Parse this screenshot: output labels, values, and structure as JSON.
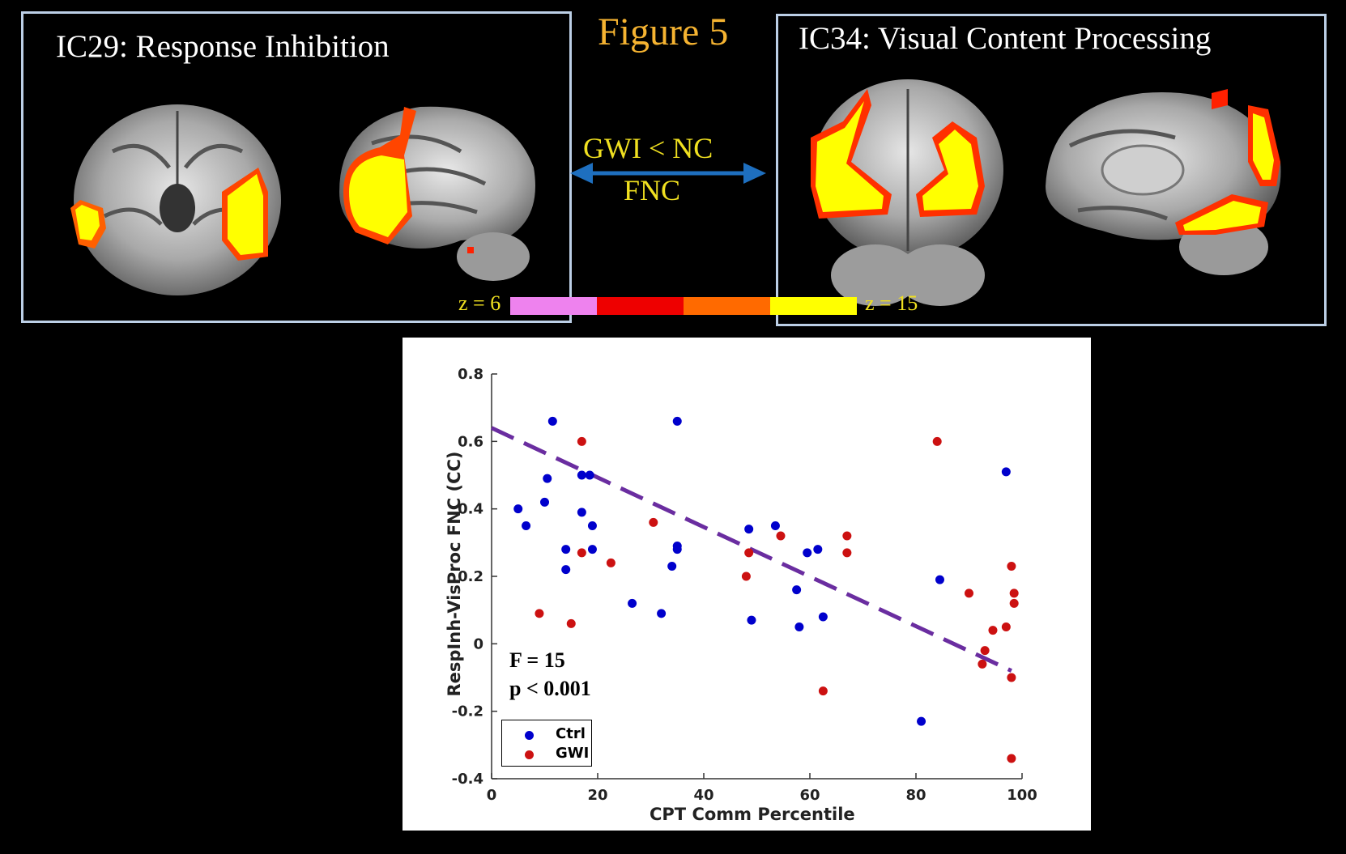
{
  "figure_title": "Figure 5",
  "left_panel": {
    "title": "IC29: Response Inhibition"
  },
  "right_panel": {
    "title": "IC34: Visual Content Processing"
  },
  "comparison": {
    "label": "GWI < NC",
    "measure": "FNC"
  },
  "colorbar": {
    "min_label": "z = 6",
    "max_label": "z = 15",
    "colors": [
      "#ee82ee",
      "#ee0000",
      "#ff6a00",
      "#ffff00"
    ]
  },
  "stats": {
    "f": "F = 15",
    "p": "p < 0.001"
  },
  "legend": [
    {
      "label": "Ctrl",
      "color": "#0000cc"
    },
    {
      "label": "GWI",
      "color": "#cc1111"
    }
  ],
  "chart_data": {
    "type": "scatter",
    "xlabel": "CPT Comm Percentile",
    "ylabel": "RespInh-VisProc FNC (CC)",
    "xlim": [
      0,
      100
    ],
    "ylim": [
      -0.4,
      0.8
    ],
    "x_ticks": [
      "0",
      "20",
      "40",
      "60",
      "80",
      "100"
    ],
    "y_ticks": [
      "-0.4",
      "-0.2",
      "0",
      "0.2",
      "0.4",
      "0.6",
      "0.8"
    ],
    "series": [
      {
        "name": "Ctrl",
        "color": "#0000cc",
        "points": [
          [
            5,
            0.4
          ],
          [
            6.5,
            0.35
          ],
          [
            10,
            0.42
          ],
          [
            10.5,
            0.49
          ],
          [
            11.5,
            0.66
          ],
          [
            14,
            0.28
          ],
          [
            14,
            0.22
          ],
          [
            17,
            0.39
          ],
          [
            17,
            0.5
          ],
          [
            18.5,
            0.5
          ],
          [
            19,
            0.35
          ],
          [
            19,
            0.28
          ],
          [
            26.5,
            0.12
          ],
          [
            32,
            0.09
          ],
          [
            34,
            0.23
          ],
          [
            35,
            0.66
          ],
          [
            35,
            0.29
          ],
          [
            35,
            0.28
          ],
          [
            48.5,
            0.34
          ],
          [
            49,
            0.07
          ],
          [
            53.5,
            0.35
          ],
          [
            57.5,
            0.16
          ],
          [
            58,
            0.05
          ],
          [
            59.5,
            0.27
          ],
          [
            61.5,
            0.28
          ],
          [
            62.5,
            0.08
          ],
          [
            81,
            -0.23
          ],
          [
            84.5,
            0.19
          ],
          [
            97,
            0.51
          ]
        ]
      },
      {
        "name": "GWI",
        "color": "#cc1111",
        "points": [
          [
            9,
            0.09
          ],
          [
            15,
            0.06
          ],
          [
            17,
            0.6
          ],
          [
            17,
            0.27
          ],
          [
            22.5,
            0.24
          ],
          [
            30.5,
            0.36
          ],
          [
            48,
            0.2
          ],
          [
            48.5,
            0.27
          ],
          [
            54.5,
            0.32
          ],
          [
            62.5,
            -0.14
          ],
          [
            67,
            0.32
          ],
          [
            67,
            0.27
          ],
          [
            84,
            0.6
          ],
          [
            90,
            0.15
          ],
          [
            92.5,
            -0.06
          ],
          [
            93,
            -0.02
          ],
          [
            94.5,
            0.04
          ],
          [
            97,
            0.05
          ],
          [
            98,
            -0.1
          ],
          [
            98,
            0.23
          ],
          [
            98,
            -0.34
          ],
          [
            98.5,
            0.15
          ],
          [
            98.5,
            0.12
          ]
        ]
      }
    ],
    "fit_line": {
      "x": [
        0,
        98
      ],
      "y": [
        0.64,
        -0.08
      ],
      "color": "#6a2da0",
      "style": "dashed"
    }
  }
}
